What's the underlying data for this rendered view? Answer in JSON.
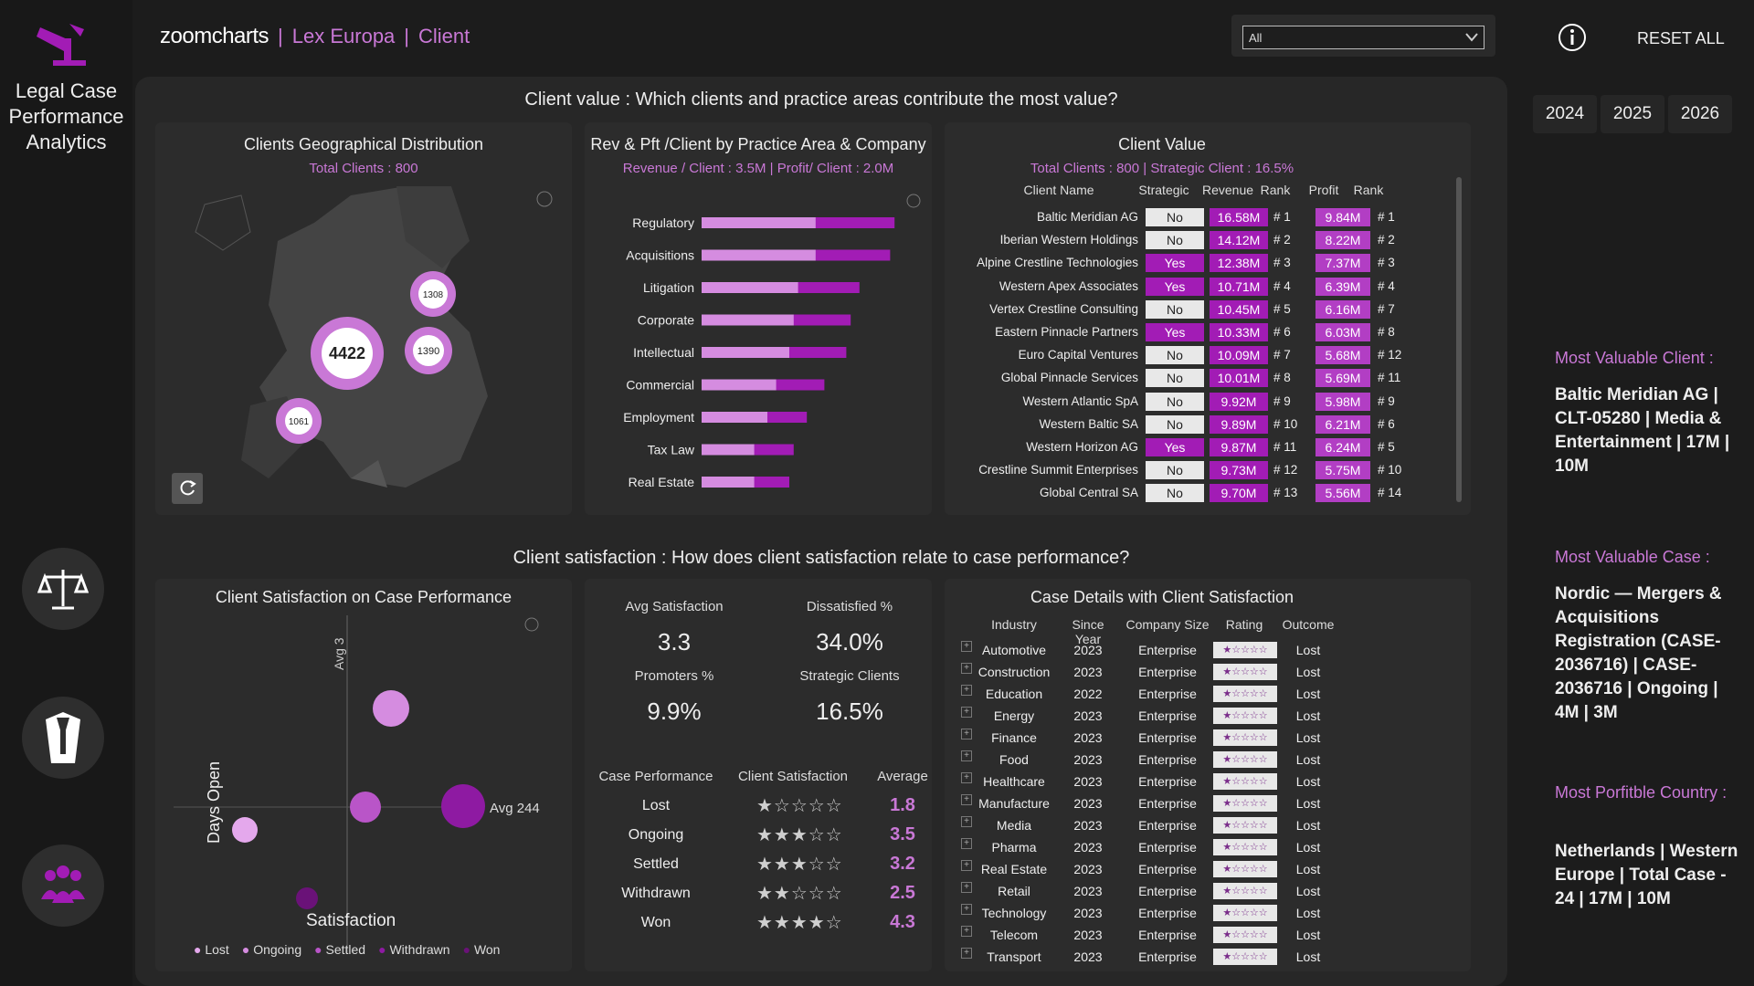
{
  "app": {
    "title_lines": [
      "Legal Case",
      "Performance",
      "Analytics"
    ],
    "brand": "zoomcharts",
    "crumbs": [
      "Lex Europa",
      "Client"
    ],
    "filter_value": "All",
    "reset_label": "RESET ALL",
    "years": [
      "2024",
      "2025",
      "2026"
    ]
  },
  "section1": {
    "question": "Client value : Which clients and practice areas contribute the most value?"
  },
  "geo": {
    "title": "Clients Geographical Distribution",
    "subtitle": "Total Clients : 800",
    "clusters": [
      {
        "label": "4422"
      },
      {
        "label": "1308"
      },
      {
        "label": "1390"
      },
      {
        "label": "1061"
      }
    ]
  },
  "practice": {
    "title": "Rev & Pft /Client by Practice Area & Company",
    "subtitle": "Revenue / Client : 3.5M  |  Profit/ Client : 2.0M"
  },
  "chart_data": {
    "type": "bar",
    "categories": [
      "Regulatory",
      "Acquisitions",
      "Litigation",
      "Corporate",
      "Intellectual",
      "Commercial",
      "Employment",
      "Tax Law",
      "Real Estate"
    ],
    "series": [
      {
        "values": [
          4.4,
          4.3,
          3.6,
          3.4,
          3.3,
          2.8,
          2.4,
          2.1,
          2.0
        ]
      },
      {
        "values": [
          2.6,
          2.6,
          2.2,
          2.1,
          2.0,
          1.7,
          1.5,
          1.2,
          1.2
        ]
      }
    ]
  },
  "client_value": {
    "title": "Client Value",
    "subtitle": "Total Clients : 800  |  Strategic Client : 16.5%",
    "headers": [
      "Client Name",
      "Strategic",
      "Revenue",
      "Rank",
      "Profit",
      "Rank"
    ],
    "rows": [
      {
        "name": "Baltic Meridian AG",
        "strategic": "No",
        "revenue": "16.58M",
        "rrank": "# 1",
        "profit": "9.84M",
        "prank": "# 1"
      },
      {
        "name": "Iberian Western Holdings",
        "strategic": "No",
        "revenue": "14.12M",
        "rrank": "# 2",
        "profit": "8.22M",
        "prank": "# 2"
      },
      {
        "name": "Alpine Crestline Technologies",
        "strategic": "Yes",
        "revenue": "12.38M",
        "rrank": "# 3",
        "profit": "7.37M",
        "prank": "# 3"
      },
      {
        "name": "Western Apex Associates",
        "strategic": "Yes",
        "revenue": "10.71M",
        "rrank": "# 4",
        "profit": "6.39M",
        "prank": "# 4"
      },
      {
        "name": "Vertex Crestline Consulting",
        "strategic": "No",
        "revenue": "10.45M",
        "rrank": "# 5",
        "profit": "6.16M",
        "prank": "# 7"
      },
      {
        "name": "Eastern Pinnacle Partners",
        "strategic": "Yes",
        "revenue": "10.33M",
        "rrank": "# 6",
        "profit": "6.03M",
        "prank": "# 8"
      },
      {
        "name": "Euro Capital Ventures",
        "strategic": "No",
        "revenue": "10.09M",
        "rrank": "# 7",
        "profit": "5.68M",
        "prank": "# 12"
      },
      {
        "name": "Global Pinnacle Services",
        "strategic": "No",
        "revenue": "10.01M",
        "rrank": "# 8",
        "profit": "5.69M",
        "prank": "# 11"
      },
      {
        "name": "Western Atlantic SpA",
        "strategic": "No",
        "revenue": "9.92M",
        "rrank": "# 9",
        "profit": "5.98M",
        "prank": "# 9"
      },
      {
        "name": "Western Baltic SA",
        "strategic": "No",
        "revenue": "9.89M",
        "rrank": "# 10",
        "profit": "6.21M",
        "prank": "# 6"
      },
      {
        "name": "Western Horizon AG",
        "strategic": "Yes",
        "revenue": "9.87M",
        "rrank": "# 11",
        "profit": "6.24M",
        "prank": "# 5"
      },
      {
        "name": "Crestline Summit Enterprises",
        "strategic": "No",
        "revenue": "9.73M",
        "rrank": "# 12",
        "profit": "5.75M",
        "prank": "# 10"
      },
      {
        "name": "Global Central SA",
        "strategic": "No",
        "revenue": "9.70M",
        "rrank": "# 13",
        "profit": "5.56M",
        "prank": "# 14"
      }
    ]
  },
  "section2": {
    "question": "Client satisfaction : How does client satisfaction relate to case performance?"
  },
  "scatter": {
    "title": "Client Satisfaction on Case Performance",
    "ylabel": "Days Open",
    "xlabel": "Satisfaction",
    "avg_x_label": "Avg 3",
    "avg_y_label": "Avg 244",
    "legend": [
      "Lost",
      "Ongoing",
      "Settled",
      "Withdrawn",
      "Won"
    ]
  },
  "kpis": [
    {
      "label": "Avg Satisfaction",
      "value": "3.3"
    },
    {
      "label": "Dissatisfied %",
      "value": "34.0%"
    },
    {
      "label": "Promoters %",
      "value": "9.9%"
    },
    {
      "label": "Strategic Clients",
      "value": "16.5%"
    }
  ],
  "perf": {
    "headers": [
      "Case Performance",
      "Client Satisfaction",
      "Average"
    ],
    "rows": [
      {
        "name": "Lost",
        "stars": "★☆☆☆☆",
        "avg": "1.8"
      },
      {
        "name": "Ongoing",
        "stars": "★★★☆☆",
        "avg": "3.5"
      },
      {
        "name": "Settled",
        "stars": "★★★☆☆",
        "avg": "3.2"
      },
      {
        "name": "Withdrawn",
        "stars": "★★☆☆☆",
        "avg": "2.5"
      },
      {
        "name": "Won",
        "stars": "★★★★☆",
        "avg": "4.3"
      }
    ]
  },
  "cases": {
    "title": "Case Details with Client Satisfaction",
    "headers": [
      "Industry",
      "Since Year",
      "Company Size",
      "Rating",
      "Outcome"
    ],
    "rows": [
      {
        "industry": "Automotive",
        "year": "2023",
        "size": "Enterprise",
        "rating": "★☆☆☆☆",
        "outcome": "Lost"
      },
      {
        "industry": "Construction",
        "year": "2023",
        "size": "Enterprise",
        "rating": "★☆☆☆☆",
        "outcome": "Lost"
      },
      {
        "industry": "Education",
        "year": "2022",
        "size": "Enterprise",
        "rating": "★☆☆☆☆",
        "outcome": "Lost"
      },
      {
        "industry": "Energy",
        "year": "2023",
        "size": "Enterprise",
        "rating": "★☆☆☆☆",
        "outcome": "Lost"
      },
      {
        "industry": "Finance",
        "year": "2023",
        "size": "Enterprise",
        "rating": "★☆☆☆☆",
        "outcome": "Lost"
      },
      {
        "industry": "Food",
        "year": "2023",
        "size": "Enterprise",
        "rating": "★☆☆☆☆",
        "outcome": "Lost"
      },
      {
        "industry": "Healthcare",
        "year": "2023",
        "size": "Enterprise",
        "rating": "★☆☆☆☆",
        "outcome": "Lost"
      },
      {
        "industry": "Manufacture",
        "year": "2023",
        "size": "Enterprise",
        "rating": "★☆☆☆☆",
        "outcome": "Lost"
      },
      {
        "industry": "Media",
        "year": "2023",
        "size": "Enterprise",
        "rating": "★☆☆☆☆",
        "outcome": "Lost"
      },
      {
        "industry": "Pharma",
        "year": "2023",
        "size": "Enterprise",
        "rating": "★☆☆☆☆",
        "outcome": "Lost"
      },
      {
        "industry": "Real Estate",
        "year": "2023",
        "size": "Enterprise",
        "rating": "★☆☆☆☆",
        "outcome": "Lost"
      },
      {
        "industry": "Retail",
        "year": "2023",
        "size": "Enterprise",
        "rating": "★☆☆☆☆",
        "outcome": "Lost"
      },
      {
        "industry": "Technology",
        "year": "2023",
        "size": "Enterprise",
        "rating": "★☆☆☆☆",
        "outcome": "Lost"
      },
      {
        "industry": "Telecom",
        "year": "2023",
        "size": "Enterprise",
        "rating": "★☆☆☆☆",
        "outcome": "Lost"
      },
      {
        "industry": "Transport",
        "year": "2023",
        "size": "Enterprise",
        "rating": "★☆☆☆☆",
        "outcome": "Lost"
      }
    ]
  },
  "insights": {
    "client_label": "Most Valuable Client :",
    "client_value": "Baltic Meridian AG | CLT-05280 | Media & Entertainment | 17M | 10M",
    "case_label": "Most Valuable Case :",
    "case_value": "Nordic — Mergers & Acquisitions Registration (CASE-2036716) | CASE-2036716 | Ongoing | 4M | 3M",
    "country_label": "Most Porfitble Country :",
    "country_value": "Netherlands | Western Europe | Total Case - 24 | 17M | 10M"
  },
  "colors": {
    "accent": "#c978d6",
    "bar_dark": "#a21cb5",
    "bar_light": "#d58ce0",
    "tag_bg": "#e8e8e8",
    "tag_fg": "#222"
  }
}
